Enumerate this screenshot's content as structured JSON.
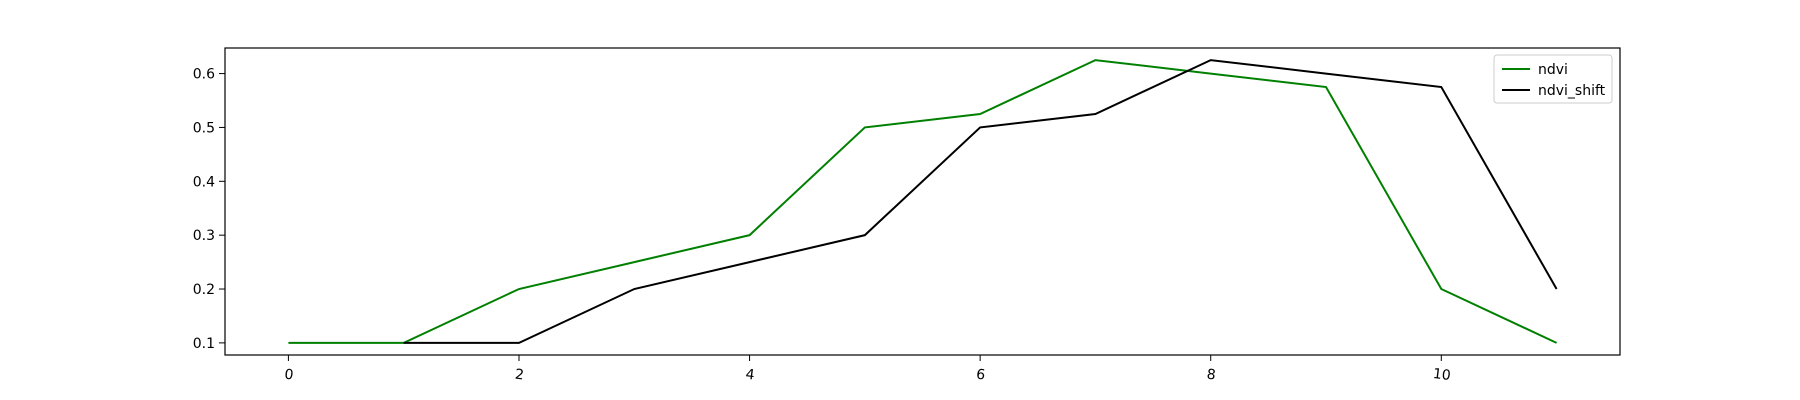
{
  "chart_data": {
    "type": "line",
    "title": "",
    "xlabel": "",
    "ylabel": "",
    "x": [
      0,
      1,
      2,
      3,
      4,
      5,
      6,
      7,
      8,
      9,
      10,
      11
    ],
    "xlim": [
      -0.55,
      11.55
    ],
    "ylim": [
      0.0775,
      0.6475
    ],
    "xticks": [
      0,
      2,
      4,
      6,
      8,
      10
    ],
    "yticks": [
      0.1,
      0.2,
      0.3,
      0.4,
      0.5,
      0.6
    ],
    "xtick_labels": [
      "0",
      "2",
      "4",
      "6",
      "8",
      "10"
    ],
    "ytick_labels": [
      "0.1",
      "0.2",
      "0.3",
      "0.4",
      "0.5",
      "0.6"
    ],
    "grid": false,
    "legend_position": "top-right",
    "series": [
      {
        "name": "ndvi",
        "color": "#008000",
        "values": [
          0.1,
          0.1,
          0.2,
          0.25,
          0.3,
          0.5,
          0.525,
          0.625,
          0.6,
          0.575,
          0.2,
          0.1
        ]
      },
      {
        "name": "ndvi_shift",
        "color": "#000000",
        "values": [
          null,
          0.1,
          0.1,
          0.2,
          0.25,
          0.3,
          0.5,
          0.525,
          0.625,
          0.6,
          0.575,
          0.2
        ]
      }
    ]
  }
}
